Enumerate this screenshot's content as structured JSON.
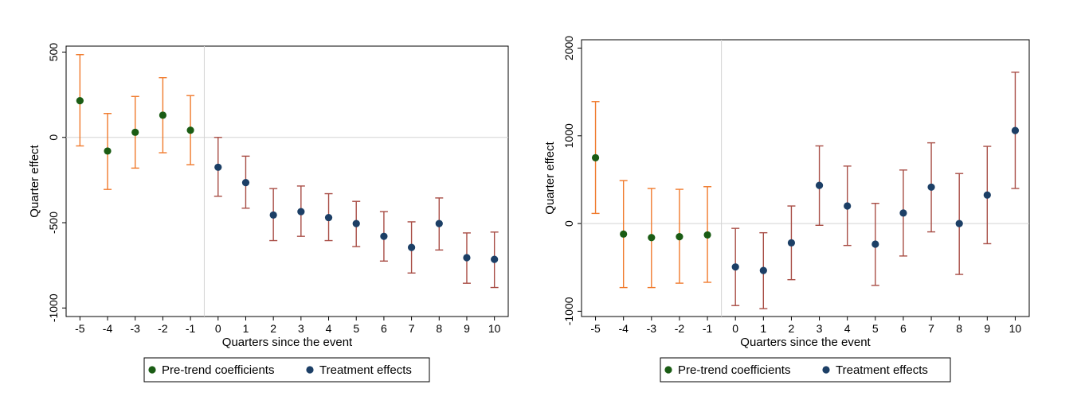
{
  "chart_data": [
    {
      "type": "scatter",
      "subtype": "event-study coefficient plot with confidence intervals",
      "xlabel": "Quarters since the event",
      "ylabel": "Quarter effect",
      "x_ticks": [
        "-5",
        "-4",
        "-3",
        "-2",
        "-1",
        "0",
        "1",
        "2",
        "3",
        "4",
        "5",
        "6",
        "7",
        "8",
        "9",
        "10"
      ],
      "y_ticks": [
        "500",
        "0",
        "-500",
        "-1000"
      ],
      "ylim": [
        -1050,
        535
      ],
      "event_line_at": -0.5,
      "zero_line": true,
      "legend_position": "bottom-center",
      "series": [
        {
          "name": "Pre-trend coefficients",
          "point_color": "#1a5c14",
          "ci_color": "#f07a2c",
          "x": [
            -5,
            -4,
            -3,
            -2,
            -1
          ],
          "values": [
            215,
            -80,
            30,
            130,
            42
          ],
          "ci_low": [
            -50,
            -305,
            -180,
            -90,
            -160
          ],
          "ci_high": [
            485,
            140,
            240,
            350,
            245
          ]
        },
        {
          "name": "Treatment effects",
          "point_color": "#1c3f66",
          "ci_color": "#a84d45",
          "x": [
            0,
            1,
            2,
            3,
            4,
            5,
            6,
            7,
            8,
            9,
            10
          ],
          "values": [
            -175,
            -265,
            -455,
            -435,
            -470,
            -505,
            -580,
            -645,
            -505,
            -705,
            -715
          ],
          "ci_low": [
            -345,
            -415,
            -605,
            -580,
            -605,
            -640,
            -725,
            -795,
            -660,
            -855,
            -880
          ],
          "ci_high": [
            0,
            -110,
            -300,
            -285,
            -330,
            -375,
            -435,
            -495,
            -355,
            -560,
            -555
          ]
        }
      ]
    },
    {
      "type": "scatter",
      "subtype": "event-study coefficient plot with confidence intervals",
      "xlabel": "Quarters since the event",
      "ylabel": "Quarter effect",
      "x_ticks": [
        "-5",
        "-4",
        "-3",
        "-2",
        "-1",
        "0",
        "1",
        "2",
        "3",
        "4",
        "5",
        "6",
        "7",
        "8",
        "9",
        "10"
      ],
      "y_ticks": [
        "2000",
        "1000",
        "0",
        "-1000"
      ],
      "ylim": [
        -1060,
        2095
      ],
      "event_line_at": -0.5,
      "zero_line": true,
      "legend_position": "bottom-center",
      "series": [
        {
          "name": "Pre-trend coefficients",
          "point_color": "#1a5c14",
          "ci_color": "#f07a2c",
          "x": [
            -5,
            -4,
            -3,
            -2,
            -1
          ],
          "values": [
            750,
            -120,
            -160,
            -150,
            -130
          ],
          "ci_low": [
            115,
            -730,
            -730,
            -680,
            -670
          ],
          "ci_high": [
            1390,
            490,
            400,
            390,
            420
          ]
        },
        {
          "name": "Treatment effects",
          "point_color": "#1c3f66",
          "ci_color": "#a84d45",
          "x": [
            0,
            1,
            2,
            3,
            4,
            5,
            6,
            7,
            8,
            9,
            10
          ],
          "values": [
            -495,
            -535,
            -220,
            435,
            200,
            -235,
            120,
            415,
            0,
            325,
            1060
          ],
          "ci_low": [
            -935,
            -970,
            -640,
            -20,
            -250,
            -705,
            -370,
            -95,
            -580,
            -230,
            400
          ],
          "ci_high": [
            -55,
            -105,
            200,
            885,
            655,
            230,
            610,
            920,
            570,
            880,
            1725
          ]
        }
      ]
    }
  ]
}
